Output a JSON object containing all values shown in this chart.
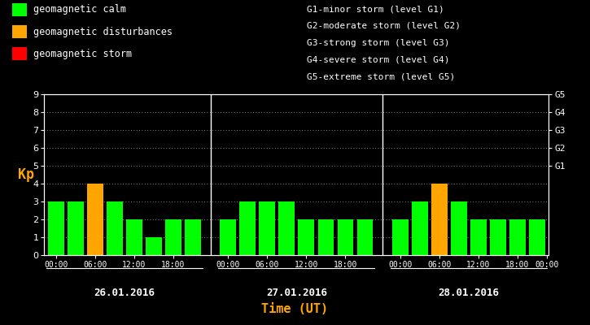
{
  "bg_color": "#000000",
  "plot_bg_color": "#000000",
  "text_color": "#ffffff",
  "orange_color": "#ffa500",
  "green_color": "#00ff00",
  "red_color": "#ff0000",
  "time_color": "#ffa500",
  "kp_label_color": "#ffa500",
  "days": [
    "26.01.2016",
    "27.01.2016",
    "28.01.2016"
  ],
  "bar_data": [
    [
      3,
      3,
      4,
      3,
      2,
      1,
      2,
      2
    ],
    [
      2,
      3,
      3,
      3,
      2,
      2,
      2,
      2
    ],
    [
      2,
      3,
      4,
      3,
      2,
      2,
      2,
      2
    ]
  ],
  "bar_colors": [
    [
      "#00ff00",
      "#00ff00",
      "#ffa500",
      "#00ff00",
      "#00ff00",
      "#00ff00",
      "#00ff00",
      "#00ff00"
    ],
    [
      "#00ff00",
      "#00ff00",
      "#00ff00",
      "#00ff00",
      "#00ff00",
      "#00ff00",
      "#00ff00",
      "#00ff00"
    ],
    [
      "#00ff00",
      "#00ff00",
      "#ffa500",
      "#00ff00",
      "#00ff00",
      "#00ff00",
      "#00ff00",
      "#00ff00"
    ]
  ],
  "ylim": [
    0,
    9
  ],
  "yticks": [
    0,
    1,
    2,
    3,
    4,
    5,
    6,
    7,
    8,
    9
  ],
  "right_labels": [
    "G1",
    "G2",
    "G3",
    "G4",
    "G5"
  ],
  "right_label_yvals": [
    5,
    6,
    7,
    8,
    9
  ],
  "legend_items": [
    {
      "color": "#00ff00",
      "label": "geomagnetic calm"
    },
    {
      "color": "#ffa500",
      "label": "geomagnetic disturbances"
    },
    {
      "color": "#ff0000",
      "label": "geomagnetic storm"
    }
  ],
  "storm_levels": [
    "G1-minor storm (level G1)",
    "G2-moderate storm (level G2)",
    "G3-strong storm (level G3)",
    "G4-severe storm (level G4)",
    "G5-extreme storm (level G5)"
  ],
  "xlabel": "Time (UT)",
  "ylabel": "Kp",
  "n_bars_per_day": 8,
  "n_days": 3,
  "bar_width": 0.82
}
